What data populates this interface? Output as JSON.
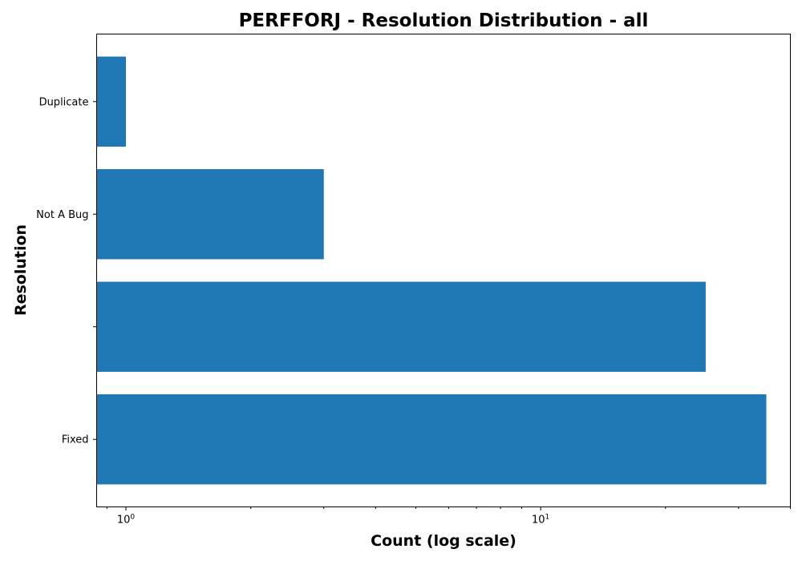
{
  "chart_data": {
    "type": "bar",
    "orientation": "horizontal",
    "title": "PERFFORJ - Resolution Distribution - all",
    "xlabel": "Count (log scale)",
    "ylabel": "Resolution",
    "x_scale": "log",
    "xlim": [
      0.85,
      40
    ],
    "x_major_ticks": [
      {
        "value": 1,
        "base": "10",
        "exponent": "0"
      },
      {
        "value": 10,
        "base": "10",
        "exponent": "1"
      }
    ],
    "categories": [
      "Duplicate",
      "Not A Bug",
      "",
      "Fixed"
    ],
    "values": [
      1,
      3,
      25,
      35
    ],
    "bar_color": "#1f77b4",
    "grid": false
  }
}
